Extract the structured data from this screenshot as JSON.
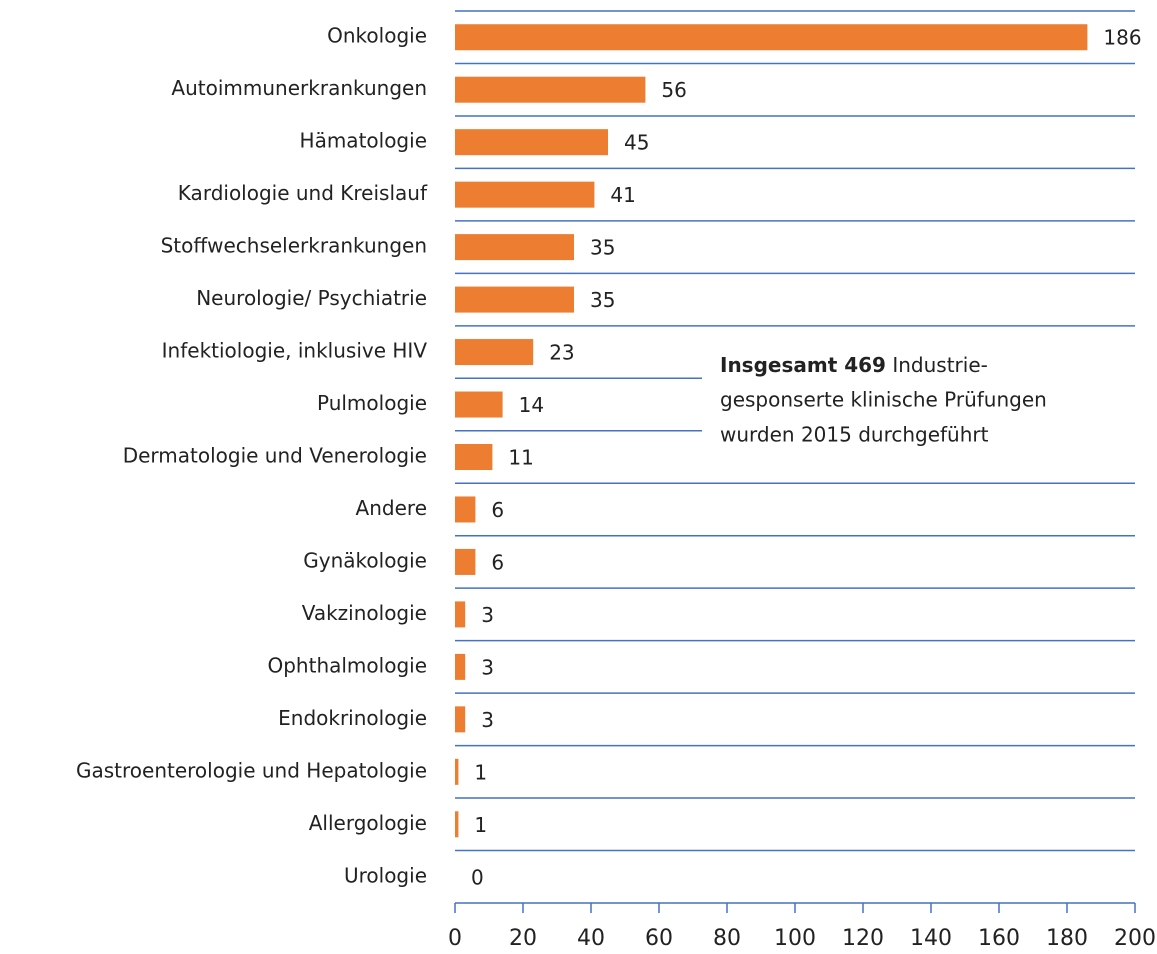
{
  "chart_data": {
    "type": "bar",
    "orientation": "horizontal",
    "categories": [
      "Onkologie",
      "Autoimmunerkrankungen",
      "Hämatologie",
      "Kardiologie und Kreislauf",
      "Stoffwechselerkrankungen",
      "Neurologie/ Psychiatrie",
      "Infektiologie, inklusive HIV",
      "Pulmologie",
      "Dermatologie und Venerologie",
      "Andere",
      "Gynäkologie",
      "Vakzinologie",
      "Ophthalmologie",
      "Endokrinologie",
      "Gastroenterologie und Hepatologie",
      "Allergologie",
      "Urologie"
    ],
    "values": [
      186,
      56,
      45,
      41,
      35,
      35,
      23,
      14,
      11,
      6,
      6,
      3,
      3,
      3,
      1,
      1,
      0
    ],
    "color": "#ed7d31",
    "xlim": [
      0,
      200
    ],
    "xticks": [
      0,
      20,
      40,
      60,
      80,
      100,
      120,
      140,
      160,
      180,
      200
    ],
    "annotation": {
      "bold": "Insgesamt 469",
      "lines": [
        "Industrie-",
        "gesponserte klinische Prüfungen",
        "wurden 2015 durchgeführt"
      ]
    }
  }
}
